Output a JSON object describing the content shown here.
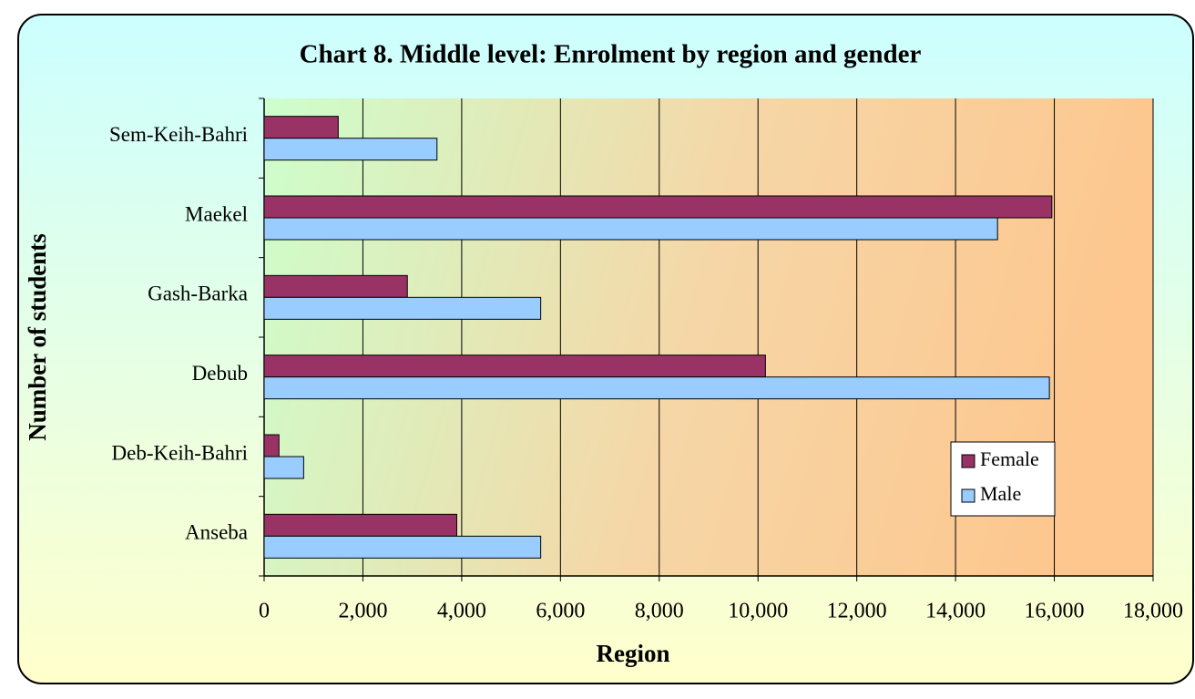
{
  "chart_data": {
    "type": "hbar",
    "title": "Chart 8. Middle level: Enrolment by region and gender",
    "x_label": "Region",
    "y_label": "Number of students",
    "categories": [
      "Sem-Keih-Bahri",
      "Maekel",
      "Gash-Barka",
      "Debub",
      "Deb-Keih-Bahri",
      "Anseba"
    ],
    "series": [
      {
        "name": "Female",
        "color": "#993366",
        "values": [
          1500,
          15950,
          2900,
          10150,
          300,
          3900
        ]
      },
      {
        "name": "Male",
        "color": "#99ccff",
        "values": [
          3500,
          14850,
          5600,
          15900,
          800,
          5600
        ]
      }
    ],
    "xlim": [
      0,
      18000
    ],
    "xticks": [
      0,
      {
        "value": 2000,
        "label": "2,000"
      },
      {
        "value": 4000,
        "label": "4,000"
      },
      {
        "value": 6000,
        "label": "6,000"
      },
      {
        "value": 8000,
        "label": "8,000"
      },
      {
        "value": 10000,
        "label": "10,000"
      },
      {
        "value": 12000,
        "label": "12,000"
      },
      {
        "value": 14000,
        "label": "14,000"
      },
      {
        "value": 16000,
        "label": "16,000"
      },
      {
        "value": 18000,
        "label": "18,000"
      }
    ],
    "grid": true,
    "legend": "lower right"
  }
}
